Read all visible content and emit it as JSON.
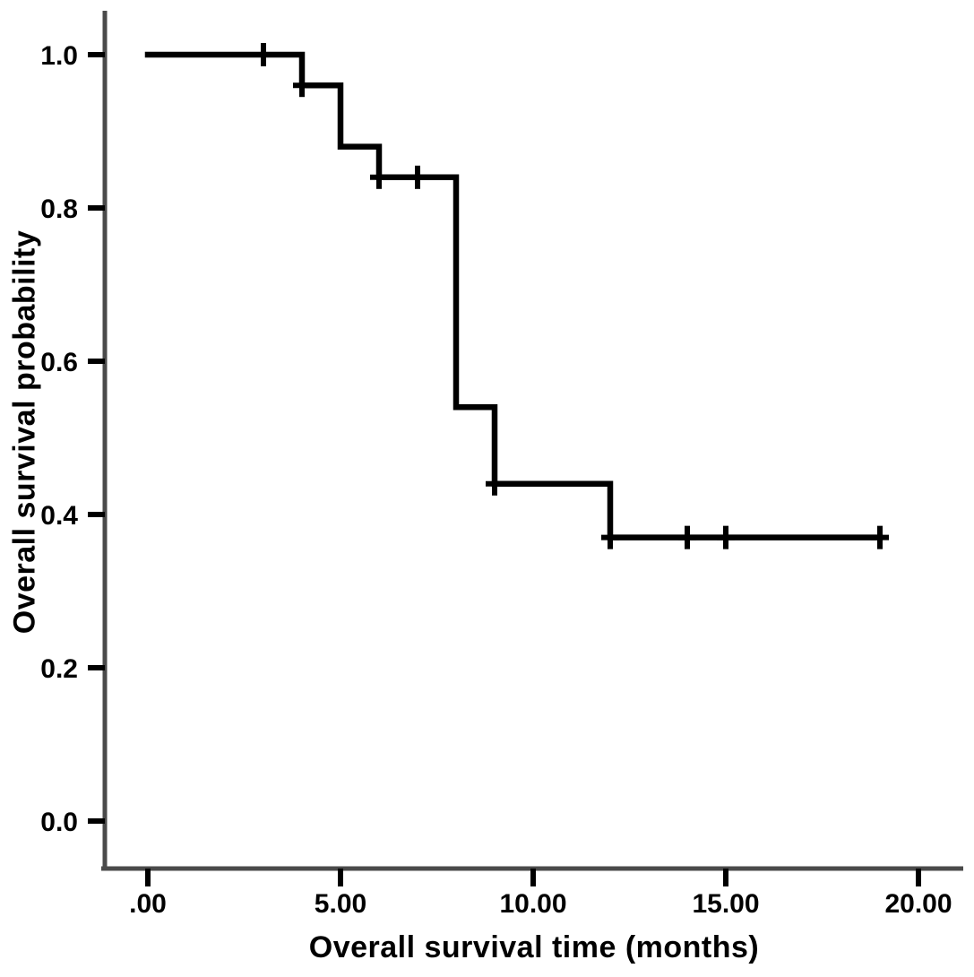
{
  "chart_data": {
    "type": "line",
    "subtype": "kaplan-meier-step",
    "title": "",
    "xlabel": "Overall survival time (months)",
    "ylabel": "Overall survival probability",
    "xlim": [
      0,
      20
    ],
    "ylim": [
      0.0,
      1.0
    ],
    "grid": false,
    "legend": "none",
    "axis_color": "#4a4a4a",
    "curve_color": "#000000",
    "text_color": "#000000",
    "x_ticks": [
      {
        "value": 0,
        "label": ".00"
      },
      {
        "value": 5,
        "label": "5.00"
      },
      {
        "value": 10,
        "label": "10.00"
      },
      {
        "value": 15,
        "label": "15.00"
      },
      {
        "value": 20,
        "label": "20.00"
      }
    ],
    "y_ticks": [
      {
        "value": 0.0,
        "label": "0.0"
      },
      {
        "value": 0.2,
        "label": "0.2"
      },
      {
        "value": 0.4,
        "label": "0.4"
      },
      {
        "value": 0.6,
        "label": "0.6"
      },
      {
        "value": 0.8,
        "label": "0.8"
      },
      {
        "value": 1.0,
        "label": "1.0"
      }
    ],
    "series": [
      {
        "name": "Overall survival",
        "color": "#000000",
        "step_points": [
          [
            0,
            1.0
          ],
          [
            4,
            1.0
          ],
          [
            4,
            0.96
          ],
          [
            5,
            0.96
          ],
          [
            5,
            0.88
          ],
          [
            6,
            0.88
          ],
          [
            6,
            0.84
          ],
          [
            8,
            0.84
          ],
          [
            8,
            0.54
          ],
          [
            9,
            0.54
          ],
          [
            9,
            0.44
          ],
          [
            12,
            0.44
          ],
          [
            12,
            0.37
          ],
          [
            19,
            0.37
          ]
        ],
        "censor_marks": [
          [
            3,
            1.0
          ],
          [
            4,
            0.96
          ],
          [
            6,
            0.84
          ],
          [
            7,
            0.84
          ],
          [
            9,
            0.44
          ],
          [
            12,
            0.37
          ],
          [
            14,
            0.37
          ],
          [
            15,
            0.37
          ],
          [
            19,
            0.37
          ]
        ]
      }
    ]
  }
}
